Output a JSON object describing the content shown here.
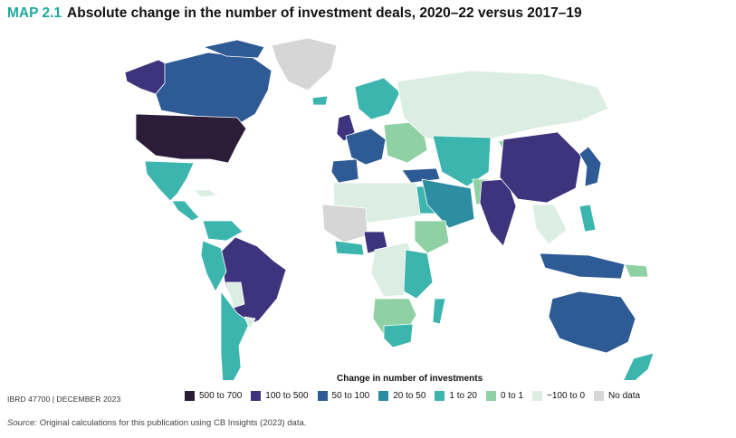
{
  "title": {
    "label": "MAP 2.1",
    "text": "Absolute change in the number of investment deals, 2020–22 versus 2017–19"
  },
  "legend": {
    "heading": "Change in number of investments",
    "items": [
      {
        "label": "500 to 700",
        "color": "#2b1d38"
      },
      {
        "label": "100 to 500",
        "color": "#3e347d"
      },
      {
        "label": "50 to 100",
        "color": "#2e5b96"
      },
      {
        "label": "20 to 50",
        "color": "#2c8ea0"
      },
      {
        "label": "1 to 20",
        "color": "#3cb5ae"
      },
      {
        "label": "0 to 1",
        "color": "#8fd1a4"
      },
      {
        "label": "−100 to 0",
        "color": "#dceee4"
      },
      {
        "label": "No data",
        "color": "#d6d6d6"
      }
    ]
  },
  "ibrd": "IBRD 47700 | DECEMBER 2023",
  "source": {
    "label": "Source:",
    "text": "Original calculations for this publication using CB Insights (2023) data."
  },
  "colors": {
    "ocean": "#ffffff",
    "title_accent": "#1fa99c"
  }
}
